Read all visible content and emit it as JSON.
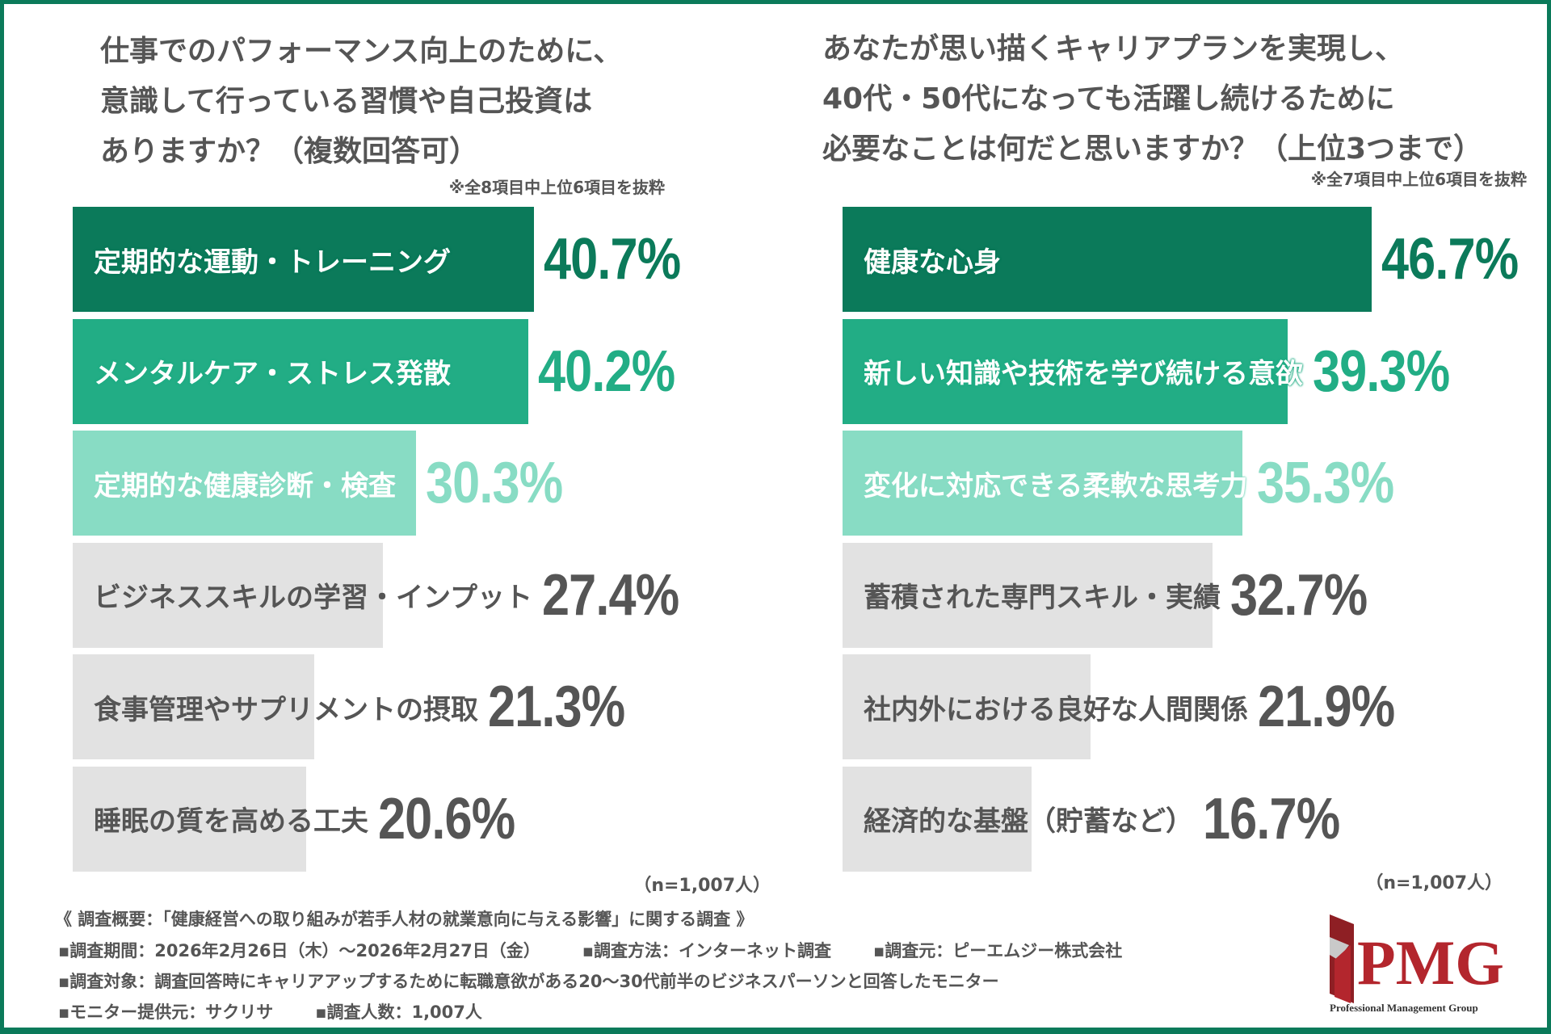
{
  "chart_data": [
    {
      "type": "bar",
      "orientation": "horizontal",
      "title": "仕事でのパフォーマンス向上のために、意識して行っている習慣や自己投資はありますか？（複数回答可）",
      "title_lines": [
        "仕事でのパフォーマンス向上のために、",
        "意識して行っている習慣や自己投資は",
        "ありますか？（複数回答可）"
      ],
      "note": "※全8項目中上位6項目を抜粋",
      "sample": "（n=1,007人）",
      "unit": "%",
      "categories": [
        "定期的な運動・トレーニング",
        "メンタルケア・ストレス発散",
        "定期的な健康診断・検査",
        "ビジネススキルの学習・インプット",
        "食事管理やサプリメントの摂取",
        "睡眠の質を高める工夫"
      ],
      "values": [
        40.7,
        40.2,
        30.3,
        27.4,
        21.3,
        20.6
      ],
      "labels": [
        "40.7%",
        "40.2%",
        "30.3%",
        "27.4%",
        "21.3%",
        "20.6%"
      ]
    },
    {
      "type": "bar",
      "orientation": "horizontal",
      "title": "あなたが思い描くキャリアプランを実現し、40代・50代になっても活躍し続けるために必要なことは何だと思いますか？（上位3つまで）",
      "title_lines": [
        "あなたが思い描くキャリアプランを実現し、",
        "40代・50代になっても活躍し続けるために",
        "必要なことは何だと思いますか？（上位3つまで）"
      ],
      "note": "※全7項目中上位6項目を抜粋",
      "sample": "（n=1,007人）",
      "unit": "%",
      "categories": [
        "健康な心身",
        "新しい知識や技術を学び続ける意欲",
        "変化に対応できる柔軟な思考力",
        "蓄積された専門スキル・実績",
        "社内外における良好な人間関係",
        "経済的な基盤（貯蓄など）"
      ],
      "values": [
        46.7,
        39.3,
        35.3,
        32.7,
        21.9,
        16.7
      ],
      "labels": [
        "46.7%",
        "39.3%",
        "35.3%",
        "32.7%",
        "21.9%",
        "16.7%"
      ]
    }
  ],
  "colors": {
    "rank1": "#0b7a5a",
    "rank2": "#22ad85",
    "rank3": "#88dcc4",
    "other": "#e2e2e2",
    "text_gray": "#555555",
    "frame": "#0b7a5a",
    "logo_red": "#b3262d"
  },
  "footer": {
    "heading": "《 調査概要：「健康経営への取り組みが若手人材の就業意向に与える影響」に関する調査 》",
    "period": "▪調査期間：2026年2月26日（木）～2026年2月27日（金）",
    "method": "▪調査方法：インターネット調査",
    "organizer": "▪調査元：ピーエムジー株式会社",
    "target": "▪調査対象：調査回答時にキャリアアップするために転職意欲がある20～30代前半のビジネスパーソンと回答したモニター",
    "provider": "▪モニター提供元：サクリサ",
    "count": "▪調査人数：1,007人"
  },
  "logo": {
    "text": "PMG",
    "subtitle": "Professional Management Group"
  }
}
